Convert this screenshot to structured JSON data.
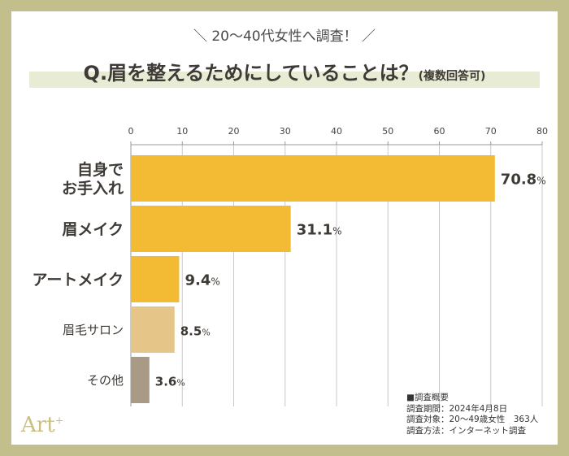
{
  "header": {
    "subtitle": "＼ 20〜40代女性へ調査！ ／",
    "title": "Q.眉を整えるためにしていることは？",
    "title_note": "(複数回答可)"
  },
  "chart_data": {
    "type": "bar",
    "orientation": "horizontal",
    "categories": [
      "自身で\nお手入れ",
      "眉メイク",
      "アートメイク",
      "眉毛サロン",
      "その他"
    ],
    "values": [
      70.8,
      31.1,
      9.4,
      8.5,
      3.6
    ],
    "value_suffix": "%",
    "xlim": [
      0,
      80
    ],
    "xticks": [
      0,
      10,
      20,
      30,
      40,
      50,
      60,
      70,
      80
    ],
    "grid": true,
    "bar_colors": [
      "#f3bb33",
      "#f3bb33",
      "#f3bb33",
      "#e6c688",
      "#a89a85"
    ],
    "label_emphasis": [
      "large",
      "large",
      "large",
      "small",
      "small"
    ]
  },
  "survey": {
    "heading": "■調査概要",
    "lines": [
      "調査期間：2024年4月8日",
      "調査対象：20〜49歳女性　363人",
      "調査方法：インターネット調査"
    ]
  },
  "brand": {
    "logo_text": "Art",
    "logo_sup": "+"
  },
  "colors": {
    "frame": "#c2bf8c",
    "title_band": "#e9ecd4",
    "grid": "#c8c8c8",
    "text": "#3e3a36"
  }
}
